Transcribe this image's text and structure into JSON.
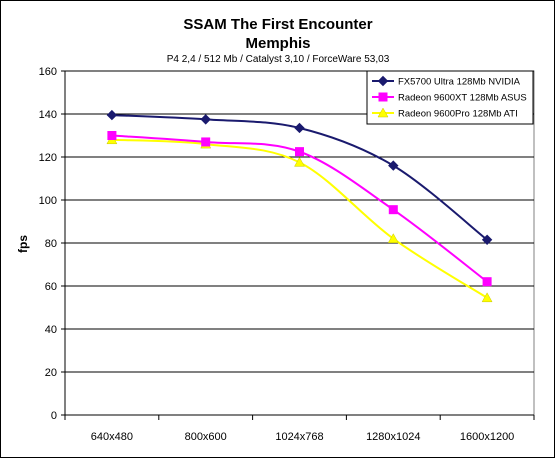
{
  "chart_data": {
    "type": "line",
    "title": "SSAM The First Encounter",
    "title2": "Memphis",
    "subtitle": "P4 2,4 / 512 Mb / Catalyst 3,10 / ForceWare 53,03",
    "xlabel": "",
    "ylabel": "fps",
    "ylim": [
      0,
      160
    ],
    "yticks": [
      0,
      20,
      40,
      60,
      80,
      100,
      120,
      140,
      160
    ],
    "categories": [
      "640x480",
      "800x600",
      "1024x768",
      "1280x1024",
      "1600x1200"
    ],
    "grid": true,
    "legend_position": "top-right",
    "series": [
      {
        "name": "FX5700 Ultra 128Mb NVIDIA",
        "color": "#1a1a6e",
        "marker": "diamond",
        "values": [
          139.5,
          137.5,
          133.5,
          116,
          81.5
        ]
      },
      {
        "name": "Radeon 9600XT 128Mb ASUS",
        "color": "#ff00ff",
        "marker": "square",
        "values": [
          130,
          127,
          122.5,
          95.5,
          62
        ]
      },
      {
        "name": "Radeon 9600Pro 128Mb ATI",
        "color": "#ffff00",
        "marker": "triangle",
        "values": [
          128,
          126,
          117.5,
          82,
          54.5
        ]
      }
    ]
  }
}
